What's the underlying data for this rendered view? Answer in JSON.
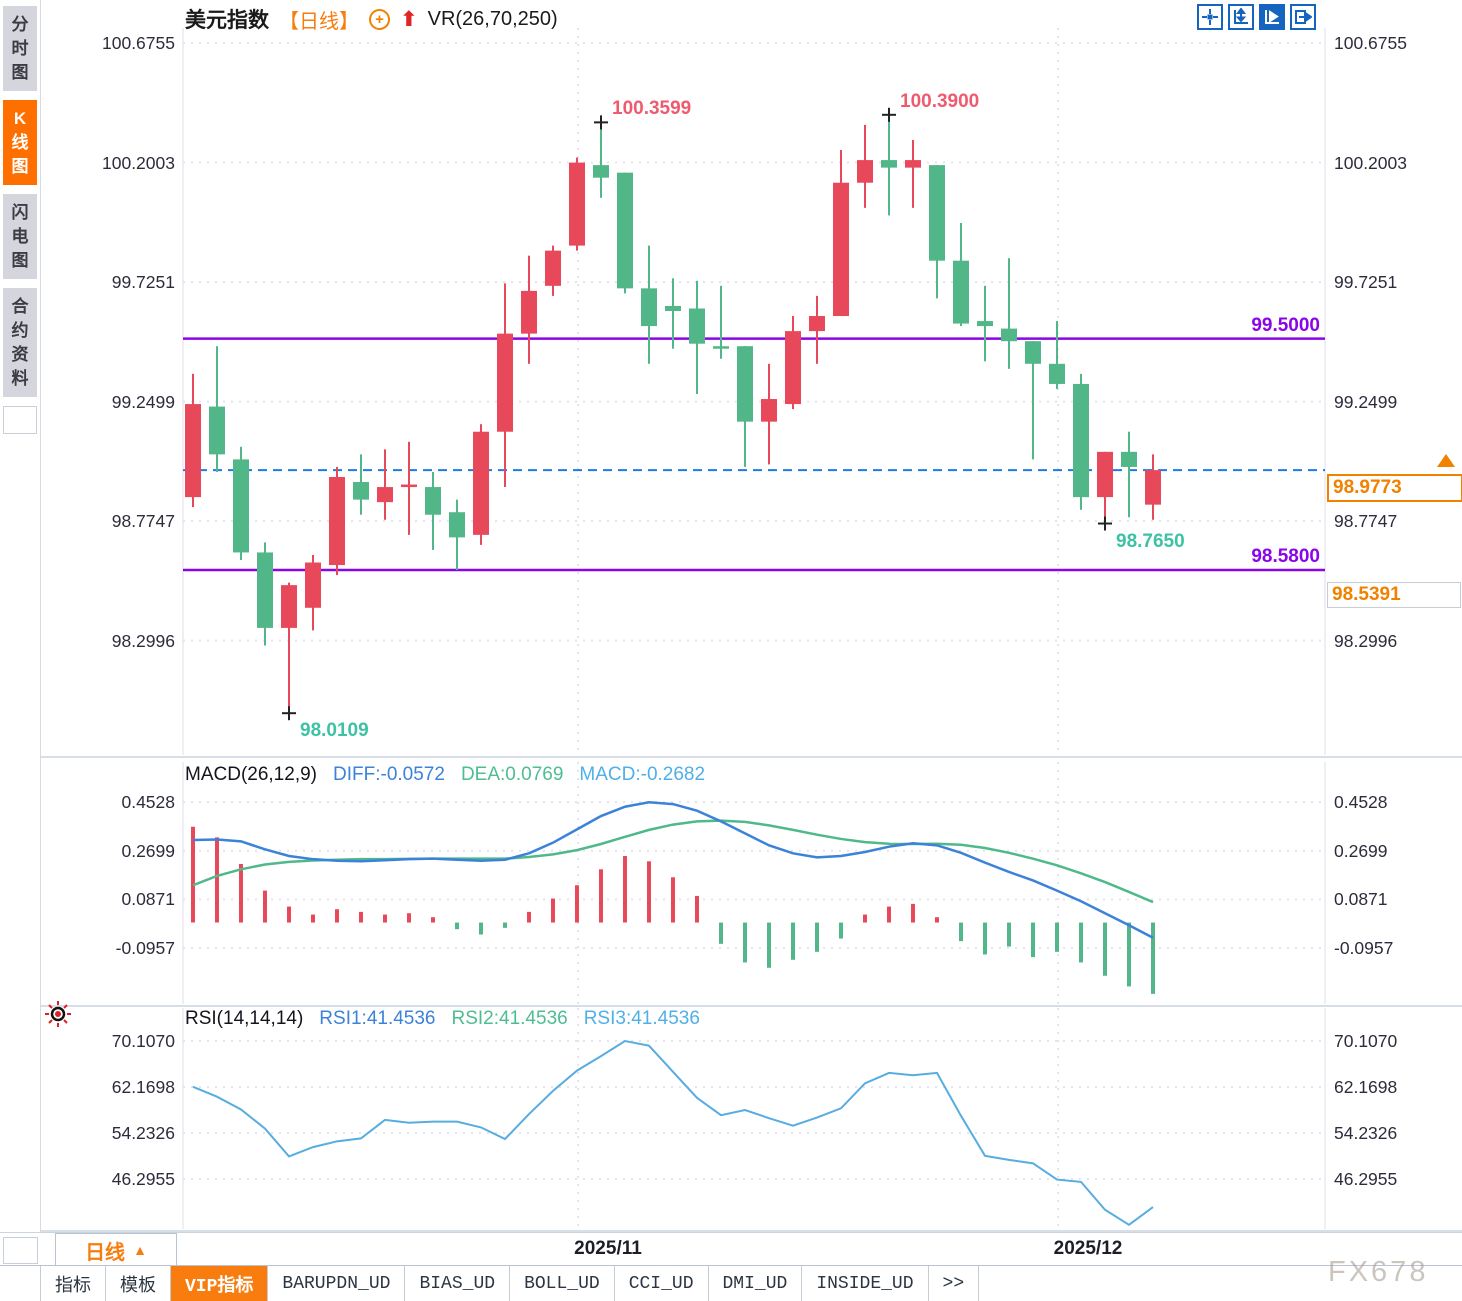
{
  "title": {
    "symbol": "美元指数",
    "period_tag": "【日线】",
    "plus_icon": "+",
    "arrow_icon": "⬆",
    "indicator": "VR(26,70,250)"
  },
  "toolbar": {
    "icons": [
      {
        "name": "move-tool-icon",
        "active": false
      },
      {
        "name": "axis-scale-icon",
        "active": false
      },
      {
        "name": "auto-fit-icon",
        "active": true
      },
      {
        "name": "go-right-icon",
        "active": false
      }
    ]
  },
  "sidebar": {
    "items": [
      {
        "label": "分时图",
        "active": false
      },
      {
        "label": "K线图",
        "active": true
      },
      {
        "label": "闪电图",
        "active": false
      },
      {
        "label": "合约资料",
        "active": false
      }
    ]
  },
  "colors": {
    "up": "#e8495a",
    "down": "#52b788",
    "accent_orange": "#f87d0e",
    "level_purple": "#8a05e8",
    "price_blue": "#1b7ce8",
    "diff_blue": "#3b82d8",
    "dea_green": "#50b98a",
    "rsi_blue": "#57ace0"
  },
  "chart_data": [
    {
      "type": "candlestick",
      "title": "美元指数 日线",
      "y_ticks": [
        "100.6755",
        "100.2003",
        "99.7251",
        "99.2499",
        "98.7747",
        "98.2996"
      ],
      "x_labels": [
        "2025/11",
        "2025/12"
      ],
      "up_color": "#e8495a",
      "down_color": "#52b788",
      "candles": [
        [
          98.87,
          99.36,
          98.83,
          99.24
        ],
        [
          99.23,
          99.47,
          98.97,
          99.04
        ],
        [
          99.02,
          99.07,
          98.62,
          98.65
        ],
        [
          98.65,
          98.69,
          98.28,
          98.35
        ],
        [
          98.35,
          98.53,
          98.011,
          98.52
        ],
        [
          98.43,
          98.64,
          98.34,
          98.61
        ],
        [
          98.6,
          98.99,
          98.56,
          98.95
        ],
        [
          98.93,
          99.04,
          98.8,
          98.86
        ],
        [
          98.85,
          99.06,
          98.78,
          98.91
        ],
        [
          98.91,
          99.09,
          98.72,
          98.92
        ],
        [
          98.91,
          98.97,
          98.66,
          98.8
        ],
        [
          98.81,
          98.86,
          98.58,
          98.71
        ],
        [
          98.72,
          99.16,
          98.68,
          99.13
        ],
        [
          99.13,
          99.72,
          98.91,
          99.52
        ],
        [
          99.52,
          99.83,
          99.4,
          99.69
        ],
        [
          99.71,
          99.87,
          99.67,
          99.85
        ],
        [
          99.87,
          100.22,
          99.85,
          100.2
        ],
        [
          100.19,
          100.3599,
          100.06,
          100.14
        ],
        [
          100.16,
          100.16,
          99.68,
          99.7
        ],
        [
          99.7,
          99.87,
          99.4,
          99.55
        ],
        [
          99.63,
          99.74,
          99.46,
          99.61
        ],
        [
          99.62,
          99.73,
          99.28,
          99.48
        ],
        [
          99.47,
          99.71,
          99.42,
          99.46
        ],
        [
          99.47,
          99.47,
          98.99,
          99.17
        ],
        [
          99.17,
          99.4,
          99.0,
          99.26
        ],
        [
          99.24,
          99.59,
          99.22,
          99.53
        ],
        [
          99.53,
          99.67,
          99.4,
          99.59
        ],
        [
          99.59,
          100.25,
          99.59,
          100.12
        ],
        [
          100.12,
          100.35,
          100.02,
          100.21
        ],
        [
          100.21,
          100.39,
          99.99,
          100.18
        ],
        [
          100.18,
          100.29,
          100.02,
          100.21
        ],
        [
          100.19,
          100.19,
          99.66,
          99.81
        ],
        [
          99.81,
          99.96,
          99.55,
          99.56
        ],
        [
          99.57,
          99.71,
          99.41,
          99.55
        ],
        [
          99.54,
          99.82,
          99.38,
          99.49
        ],
        [
          99.49,
          99.49,
          99.02,
          99.4
        ],
        [
          99.4,
          99.57,
          99.3,
          99.32
        ],
        [
          99.32,
          99.36,
          98.82,
          98.87
        ],
        [
          98.87,
          99.05,
          98.765,
          99.05
        ],
        [
          99.05,
          99.13,
          98.79,
          98.99
        ],
        [
          98.84,
          99.04,
          98.78,
          98.9773
        ]
      ],
      "levels": [
        {
          "value": 99.5,
          "label": "99.5000"
        },
        {
          "value": 98.58,
          "label": "98.5800"
        }
      ],
      "current_price": {
        "value": 98.9773,
        "label": "98.9773"
      },
      "secondary_flag": {
        "value": 98.5391,
        "label": "98.5391"
      },
      "annotations": [
        {
          "candle": 4,
          "kind": "low",
          "value": 98.0109,
          "label": "98.0109"
        },
        {
          "candle": 17,
          "kind": "high",
          "value": 100.3599,
          "label": "100.3599"
        },
        {
          "candle": 29,
          "kind": "high",
          "value": 100.39,
          "label": "100.3900"
        },
        {
          "candle": 38,
          "kind": "low",
          "value": 98.765,
          "label": "98.7650"
        }
      ]
    },
    {
      "type": "macd",
      "name": "MACD(26,12,9)",
      "labels": {
        "diff": "DIFF:-0.0572",
        "dea": "DEA:0.0769",
        "macd": "MACD:-0.2682"
      },
      "values": {
        "diff": -0.0572,
        "dea": 0.0769,
        "macd": -0.2682
      },
      "y_ticks": [
        "0.4528",
        "0.2699",
        "0.0871",
        "-0.0957"
      ],
      "hist": [
        0.36,
        0.32,
        0.22,
        0.12,
        0.06,
        0.03,
        0.05,
        0.04,
        0.03,
        0.035,
        0.02,
        -0.025,
        -0.045,
        -0.02,
        0.04,
        0.09,
        0.14,
        0.2,
        0.25,
        0.23,
        0.17,
        0.1,
        -0.08,
        -0.15,
        -0.17,
        -0.14,
        -0.11,
        -0.06,
        0.03,
        0.06,
        0.07,
        0.02,
        -0.07,
        -0.12,
        -0.09,
        -0.13,
        -0.11,
        -0.15,
        -0.2,
        -0.24,
        -0.2682
      ],
      "diff": [
        0.31,
        0.312,
        0.305,
        0.275,
        0.25,
        0.238,
        0.232,
        0.23,
        0.234,
        0.238,
        0.24,
        0.236,
        0.232,
        0.236,
        0.26,
        0.3,
        0.35,
        0.4,
        0.435,
        0.452,
        0.445,
        0.42,
        0.38,
        0.335,
        0.29,
        0.26,
        0.245,
        0.25,
        0.265,
        0.285,
        0.298,
        0.29,
        0.262,
        0.225,
        0.19,
        0.158,
        0.12,
        0.08,
        0.035,
        -0.01,
        -0.0572
      ],
      "dea": [
        0.14,
        0.175,
        0.2,
        0.218,
        0.228,
        0.233,
        0.236,
        0.238,
        0.238,
        0.239,
        0.24,
        0.24,
        0.24,
        0.24,
        0.246,
        0.256,
        0.272,
        0.295,
        0.322,
        0.348,
        0.368,
        0.38,
        0.383,
        0.378,
        0.365,
        0.348,
        0.33,
        0.314,
        0.302,
        0.296,
        0.295,
        0.296,
        0.292,
        0.28,
        0.262,
        0.24,
        0.215,
        0.185,
        0.152,
        0.115,
        0.0769
      ]
    },
    {
      "type": "line",
      "name": "RSI(14,14,14)",
      "labels": {
        "rsi1": "RSI1:41.4536",
        "rsi2": "RSI2:41.4536",
        "rsi3": "RSI3:41.4536"
      },
      "values": {
        "rsi1": 41.4536,
        "rsi2": 41.4536,
        "rsi3": 41.4536
      },
      "y_ticks": [
        "70.1070",
        "62.1698",
        "54.2326",
        "46.2955"
      ],
      "rsi1": [
        62.2,
        60.5,
        58.3,
        55.0,
        50.2,
        51.8,
        52.8,
        53.3,
        56.5,
        56.0,
        56.2,
        56.2,
        55.2,
        53.2,
        57.5,
        61.5,
        65.0,
        67.5,
        70.1,
        69.3,
        64.8,
        60.3,
        57.3,
        58.2,
        56.8,
        55.5,
        56.9,
        58.5,
        62.8,
        64.6,
        64.2,
        64.6,
        57.2,
        50.3,
        49.6,
        49.0,
        46.2,
        45.8,
        41.0,
        38.4,
        41.4536
      ]
    }
  ],
  "bottom": {
    "period_selector": {
      "label": "日线",
      "arrow": "▲"
    },
    "tabs": [
      {
        "label": "指标",
        "active": false
      },
      {
        "label": "模板",
        "active": false
      },
      {
        "label": "VIP指标",
        "active": true
      },
      {
        "label": "BARUPDN_UD",
        "active": false
      },
      {
        "label": "BIAS_UD",
        "active": false
      },
      {
        "label": "BOLL_UD",
        "active": false
      },
      {
        "label": "CCI_UD",
        "active": false
      },
      {
        "label": "DMI_UD",
        "active": false
      },
      {
        "label": "INSIDE_UD",
        "active": false
      },
      {
        "label": "&gt;&gt;",
        "active": false
      }
    ],
    "watermark": "FX678"
  }
}
